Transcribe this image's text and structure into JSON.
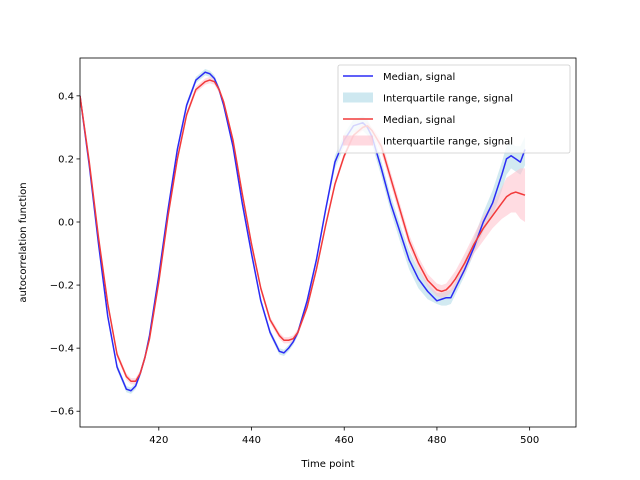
{
  "chart_data": {
    "type": "line",
    "title": "",
    "xlabel": "Time point",
    "ylabel": "autocorrelation function",
    "xlim": [
      403,
      510
    ],
    "ylim": [
      -0.65,
      0.52
    ],
    "xticks": [
      420,
      440,
      460,
      480,
      500
    ],
    "yticks": [
      -0.6,
      -0.4,
      -0.2,
      0.0,
      0.2,
      0.4
    ],
    "xtick_labels": [
      "420",
      "440",
      "460",
      "480",
      "500"
    ],
    "ytick_labels": [
      "−0.6",
      "−0.4",
      "−0.2",
      "0.0",
      "0.2",
      "0.4"
    ],
    "grid": false,
    "legend_position": "upper right",
    "x": [
      403,
      405,
      407,
      409,
      411,
      413,
      414,
      415,
      416,
      417,
      418,
      420,
      422,
      424,
      426,
      428,
      430,
      431,
      432,
      433,
      434,
      436,
      438,
      440,
      442,
      444,
      446,
      447,
      448,
      449,
      450,
      452,
      454,
      456,
      458,
      460,
      462,
      464,
      465,
      466,
      468,
      470,
      472,
      474,
      476,
      478,
      480,
      481,
      482,
      483,
      484,
      486,
      488,
      490,
      492,
      494,
      495,
      496,
      497,
      498,
      499
    ],
    "series": [
      {
        "name": "Median, signal",
        "color": "#2b2bf5",
        "band_name": "Interquartile range, signal",
        "band_color": "#add8e6",
        "median": [
          0.4,
          0.18,
          -0.07,
          -0.3,
          -0.46,
          -0.53,
          -0.535,
          -0.52,
          -0.48,
          -0.43,
          -0.36,
          -0.17,
          0.04,
          0.23,
          0.37,
          0.45,
          0.475,
          0.47,
          0.455,
          0.42,
          0.37,
          0.24,
          0.06,
          -0.1,
          -0.25,
          -0.35,
          -0.41,
          -0.415,
          -0.4,
          -0.38,
          -0.35,
          -0.25,
          -0.12,
          0.04,
          0.19,
          0.26,
          0.305,
          0.315,
          0.3,
          0.27,
          0.17,
          0.06,
          -0.03,
          -0.12,
          -0.18,
          -0.22,
          -0.25,
          -0.245,
          -0.24,
          -0.24,
          -0.21,
          -0.15,
          -0.08,
          0.0,
          0.06,
          0.15,
          0.2,
          0.21,
          0.2,
          0.19,
          0.23
        ],
        "q1": [
          0.39,
          0.17,
          -0.08,
          -0.31,
          -0.47,
          -0.54,
          -0.545,
          -0.53,
          -0.49,
          -0.44,
          -0.37,
          -0.18,
          0.03,
          0.22,
          0.36,
          0.44,
          0.465,
          0.46,
          0.445,
          0.41,
          0.36,
          0.23,
          0.05,
          -0.11,
          -0.26,
          -0.36,
          -0.42,
          -0.425,
          -0.41,
          -0.39,
          -0.36,
          -0.26,
          -0.13,
          0.03,
          0.17,
          0.24,
          0.285,
          0.29,
          0.275,
          0.245,
          0.145,
          0.035,
          -0.06,
          -0.15,
          -0.21,
          -0.245,
          -0.26,
          -0.265,
          -0.265,
          -0.26,
          -0.23,
          -0.17,
          -0.1,
          -0.03,
          0.02,
          0.1,
          0.15,
          0.17,
          0.16,
          0.15,
          0.18
        ],
        "q3": [
          0.41,
          0.19,
          -0.06,
          -0.29,
          -0.45,
          -0.52,
          -0.525,
          -0.51,
          -0.47,
          -0.42,
          -0.35,
          -0.16,
          0.05,
          0.24,
          0.38,
          0.46,
          0.485,
          0.48,
          0.465,
          0.43,
          0.38,
          0.25,
          0.07,
          -0.09,
          -0.24,
          -0.34,
          -0.4,
          -0.405,
          -0.39,
          -0.37,
          -0.34,
          -0.24,
          -0.11,
          0.05,
          0.21,
          0.28,
          0.325,
          0.335,
          0.325,
          0.295,
          0.195,
          0.085,
          -0.005,
          -0.09,
          -0.15,
          -0.195,
          -0.225,
          -0.225,
          -0.22,
          -0.215,
          -0.19,
          -0.12,
          -0.05,
          0.03,
          0.1,
          0.19,
          0.24,
          0.25,
          0.24,
          0.24,
          0.27
        ]
      },
      {
        "name": "Median, signal",
        "color": "#f23a3a",
        "band_name": "Interquartile range, signal",
        "band_color": "#ffc0cb",
        "median": [
          0.4,
          0.19,
          -0.05,
          -0.26,
          -0.42,
          -0.49,
          -0.505,
          -0.505,
          -0.48,
          -0.43,
          -0.37,
          -0.19,
          0.02,
          0.2,
          0.34,
          0.42,
          0.445,
          0.45,
          0.445,
          0.42,
          0.38,
          0.26,
          0.09,
          -0.07,
          -0.21,
          -0.31,
          -0.36,
          -0.375,
          -0.375,
          -0.37,
          -0.35,
          -0.27,
          -0.15,
          -0.01,
          0.12,
          0.21,
          0.275,
          0.3,
          0.305,
          0.29,
          0.24,
          0.14,
          0.04,
          -0.06,
          -0.13,
          -0.185,
          -0.215,
          -0.22,
          -0.215,
          -0.2,
          -0.18,
          -0.13,
          -0.07,
          -0.02,
          0.02,
          0.06,
          0.08,
          0.09,
          0.095,
          0.09,
          0.085
        ],
        "q1": [
          0.39,
          0.18,
          -0.06,
          -0.27,
          -0.43,
          -0.5,
          -0.515,
          -0.515,
          -0.49,
          -0.44,
          -0.38,
          -0.2,
          0.01,
          0.19,
          0.33,
          0.41,
          0.435,
          0.44,
          0.435,
          0.41,
          0.37,
          0.25,
          0.08,
          -0.08,
          -0.22,
          -0.32,
          -0.37,
          -0.385,
          -0.385,
          -0.38,
          -0.36,
          -0.28,
          -0.16,
          -0.02,
          0.11,
          0.2,
          0.265,
          0.29,
          0.295,
          0.28,
          0.22,
          0.12,
          0.02,
          -0.08,
          -0.15,
          -0.205,
          -0.235,
          -0.24,
          -0.235,
          -0.225,
          -0.205,
          -0.16,
          -0.1,
          -0.06,
          -0.02,
          0.01,
          0.02,
          0.03,
          0.03,
          0.01,
          0.0
        ],
        "q3": [
          0.41,
          0.2,
          -0.04,
          -0.25,
          -0.41,
          -0.48,
          -0.495,
          -0.495,
          -0.47,
          -0.42,
          -0.36,
          -0.18,
          0.03,
          0.21,
          0.35,
          0.43,
          0.455,
          0.46,
          0.455,
          0.43,
          0.39,
          0.27,
          0.1,
          -0.06,
          -0.2,
          -0.3,
          -0.35,
          -0.365,
          -0.365,
          -0.36,
          -0.34,
          -0.26,
          -0.14,
          0.0,
          0.13,
          0.22,
          0.285,
          0.31,
          0.315,
          0.3,
          0.26,
          0.16,
          0.06,
          -0.04,
          -0.11,
          -0.165,
          -0.195,
          -0.2,
          -0.195,
          -0.175,
          -0.155,
          -0.1,
          -0.04,
          0.02,
          0.06,
          0.11,
          0.14,
          0.15,
          0.16,
          0.17,
          0.17
        ]
      }
    ]
  }
}
